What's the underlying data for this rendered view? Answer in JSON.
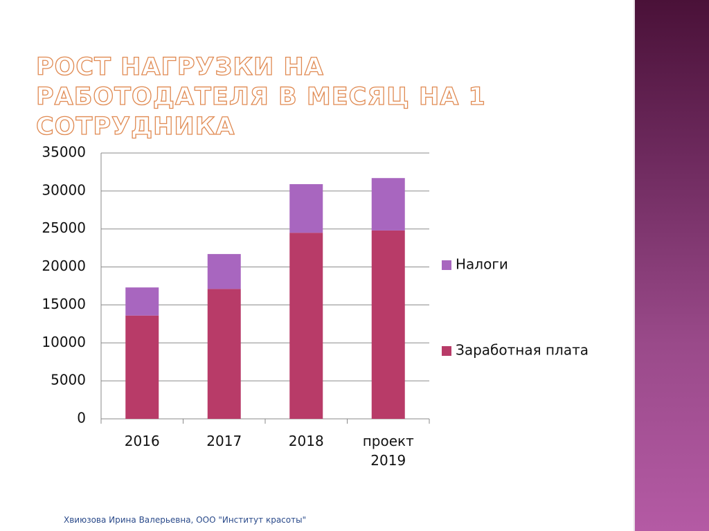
{
  "chart_data": {
    "type": "stacked_bar",
    "title": "РОСТ НАГРУЗКИ НА РАБОТОДАТЕЛЯ В МЕСЯЦ  НА 1 СОТРУДНИКА",
    "categories": [
      "2016",
      "2017",
      "2018",
      "проект 2019"
    ],
    "series": [
      {
        "name": "Заработная плата",
        "color": "#b83b68",
        "values": [
          13600,
          17100,
          24500,
          24800
        ]
      },
      {
        "name": "Налоги",
        "color": "#a866bf",
        "values": [
          3700,
          4600,
          6400,
          6900
        ]
      }
    ],
    "ylim": [
      0,
      35000
    ],
    "yticks": [
      0,
      5000,
      10000,
      15000,
      20000,
      25000,
      30000,
      35000
    ],
    "grid": true,
    "legend": "right"
  },
  "footer": "Хвиюзова Ирина Валерьевна, ООО \"Институт красоты\""
}
